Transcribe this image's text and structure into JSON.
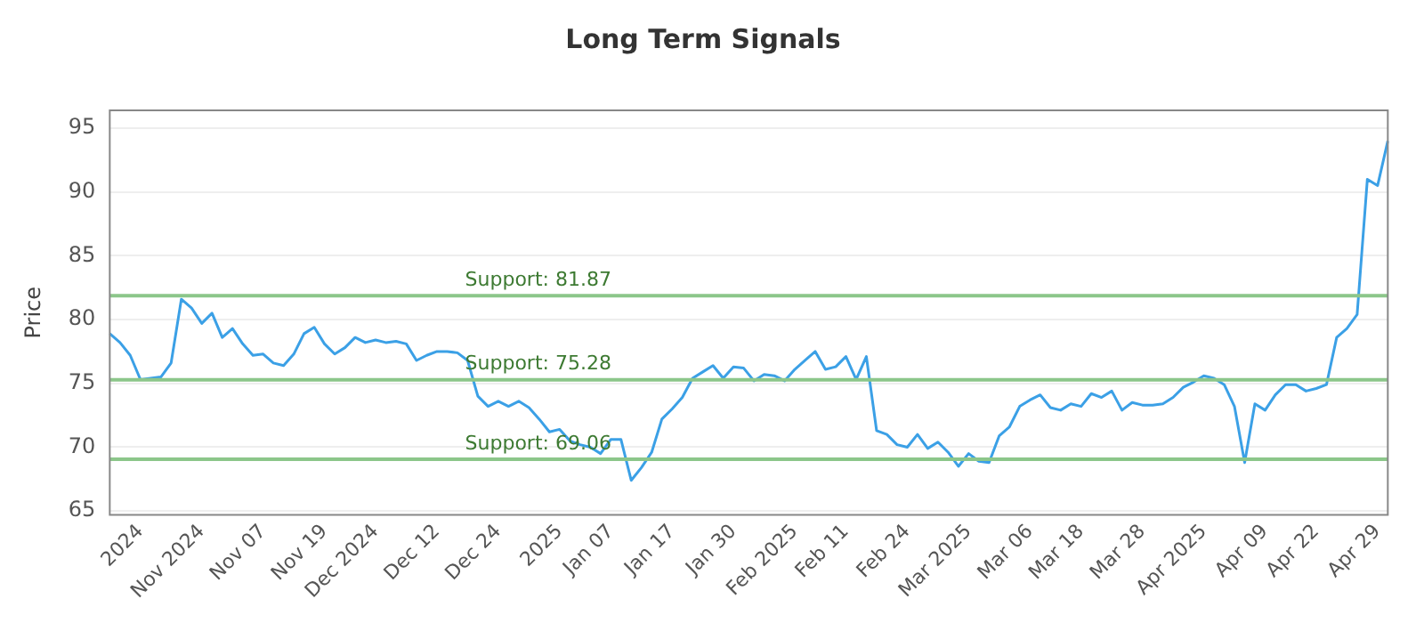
{
  "chart_data": {
    "type": "line",
    "title": "Long Term Signals",
    "ylabel": "Price",
    "categories": [
      null,
      null,
      null,
      "2024",
      null,
      null,
      null,
      null,
      null,
      "Nov 2024",
      null,
      null,
      null,
      null,
      null,
      "Nov 07",
      null,
      null,
      null,
      null,
      null,
      "Nov 19",
      null,
      null,
      null,
      null,
      "Dec 2024",
      null,
      null,
      null,
      null,
      null,
      "Dec 12",
      null,
      null,
      null,
      null,
      null,
      "Dec 24",
      null,
      null,
      null,
      null,
      null,
      "2025",
      null,
      null,
      null,
      null,
      "Jan 07",
      null,
      null,
      null,
      null,
      null,
      "Jan 17",
      null,
      null,
      null,
      null,
      null,
      "Jan 30",
      null,
      null,
      null,
      null,
      null,
      "Feb 2025",
      null,
      null,
      null,
      null,
      "Feb 11",
      null,
      null,
      null,
      null,
      null,
      "Feb 24",
      null,
      null,
      null,
      null,
      null,
      "Mar 2025",
      null,
      null,
      null,
      null,
      null,
      "Mar 06",
      null,
      null,
      null,
      null,
      "Mar 18",
      null,
      null,
      null,
      null,
      null,
      "Mar 28",
      null,
      null,
      null,
      null,
      null,
      "Apr 2025",
      null,
      null,
      null,
      null,
      null,
      "Apr 09",
      null,
      null,
      null,
      null,
      "Apr 22",
      null,
      null,
      null,
      null,
      null,
      "Apr 29",
      null
    ],
    "series": [
      {
        "color": "#3ba0e6",
        "values": [
          78.9,
          78.2,
          77.2,
          75.3,
          75.4,
          75.5,
          76.6,
          81.6,
          80.9,
          79.7,
          80.5,
          78.6,
          79.3,
          78.1,
          77.2,
          77.3,
          76.6,
          76.4,
          77.3,
          78.9,
          79.4,
          78.1,
          77.3,
          77.8,
          78.6,
          78.2,
          78.4,
          78.2,
          78.3,
          78.1,
          76.8,
          77.2,
          77.5,
          77.5,
          77.4,
          76.8,
          74.0,
          73.2,
          73.6,
          73.2,
          73.6,
          73.1,
          72.2,
          71.2,
          71.4,
          70.5,
          70.2,
          70.0,
          69.5,
          70.6,
          70.6,
          67.4,
          68.4,
          69.6,
          72.2,
          73.0,
          73.9,
          75.4,
          75.9,
          76.4,
          75.4,
          76.3,
          76.2,
          75.2,
          75.7,
          75.6,
          75.2,
          76.1,
          76.8,
          77.5,
          76.1,
          76.3,
          77.1,
          75.3,
          77.1,
          71.3,
          71.0,
          70.2,
          70.0,
          71.0,
          69.9,
          70.4,
          69.6,
          68.5,
          69.5,
          68.9,
          68.8,
          70.9,
          71.6,
          73.2,
          73.7,
          74.1,
          73.1,
          72.9,
          73.4,
          73.2,
          74.2,
          73.9,
          74.4,
          72.9,
          73.5,
          73.3,
          73.3,
          73.4,
          73.9,
          74.7,
          75.1,
          75.6,
          75.4,
          74.9,
          73.2,
          68.8,
          73.4,
          72.9,
          74.1,
          74.9,
          74.9,
          74.4,
          74.6,
          74.9,
          78.6,
          79.3,
          80.4,
          91.0,
          90.5,
          94.0
        ]
      }
    ],
    "ylim": [
      64.7,
      96.4
    ],
    "yticks": [
      65,
      70,
      75,
      80,
      85,
      90,
      95
    ],
    "grid": "y",
    "legend": false,
    "marker": "none",
    "line_style": "solid",
    "ref_lines": [
      {
        "axis": "y",
        "value": 81.87,
        "label": "Support: 81.87",
        "color": "#8cc68a"
      },
      {
        "axis": "y",
        "value": 75.28,
        "label": "Support: 75.28",
        "color": "#8cc68a"
      },
      {
        "axis": "y",
        "value": 69.06,
        "label": "Support: 69.06",
        "color": "#8cc68a"
      }
    ]
  }
}
